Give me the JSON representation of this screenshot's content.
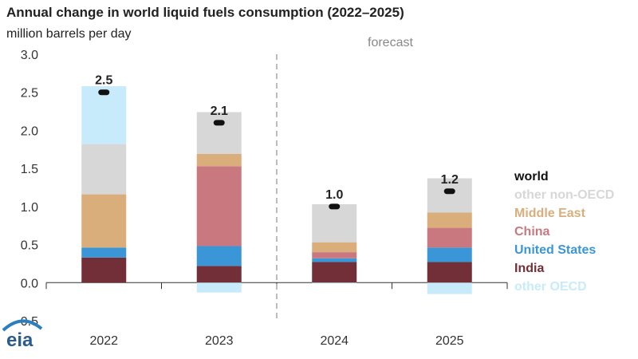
{
  "chart_data": {
    "type": "bar",
    "stacked": true,
    "title": "Annual change in world liquid fuels consumption (2022–2025)",
    "ylabel": "million barrels per day",
    "ylim": [
      -0.5,
      3.0
    ],
    "yticks": [
      "3.0",
      "2.5",
      "2.0",
      "1.5",
      "1.0",
      "0.5",
      "0.0",
      "-0.5"
    ],
    "ytick_values": [
      3.0,
      2.5,
      2.0,
      1.5,
      1.0,
      0.5,
      0.0,
      -0.5
    ],
    "categories": [
      "2022",
      "2023",
      "2024",
      "2025"
    ],
    "forecast_label": "forecast",
    "forecast_from_index": 2,
    "series": [
      {
        "name": "India",
        "color": "#722f37",
        "values": [
          0.33,
          0.22,
          0.27,
          0.27
        ]
      },
      {
        "name": "United States",
        "color": "#3a96d6",
        "values": [
          0.13,
          0.26,
          0.05,
          0.19
        ]
      },
      {
        "name": "China",
        "color": "#c9787f",
        "values": [
          0.0,
          1.05,
          0.08,
          0.26
        ]
      },
      {
        "name": "Middle East",
        "color": "#d9ae7b",
        "values": [
          0.7,
          0.16,
          0.13,
          0.2
        ]
      },
      {
        "name": "other non-OECD",
        "color": "#d7d7d7",
        "values": [
          0.66,
          0.55,
          0.5,
          0.45
        ]
      },
      {
        "name": "other OECD",
        "color": "#c8ebfc",
        "values": [
          0.76,
          -0.13,
          -0.01,
          -0.15
        ]
      }
    ],
    "world": {
      "name": "world",
      "values": [
        2.5,
        2.1,
        1.0,
        1.2
      ],
      "labels": [
        "2.5",
        "2.1",
        "1.0",
        "1.2"
      ]
    },
    "legend": [
      "world",
      "other non-OECD",
      "Middle East",
      "China",
      "United States",
      "India",
      "other OECD"
    ],
    "legend_colors": [
      "#111111",
      "#d7d7d7",
      "#d9ae7b",
      "#c9787f",
      "#3a96d6",
      "#722f37",
      "#c8ebfc"
    ],
    "legend_position": "right",
    "grid": true
  },
  "logo_text": "eia"
}
